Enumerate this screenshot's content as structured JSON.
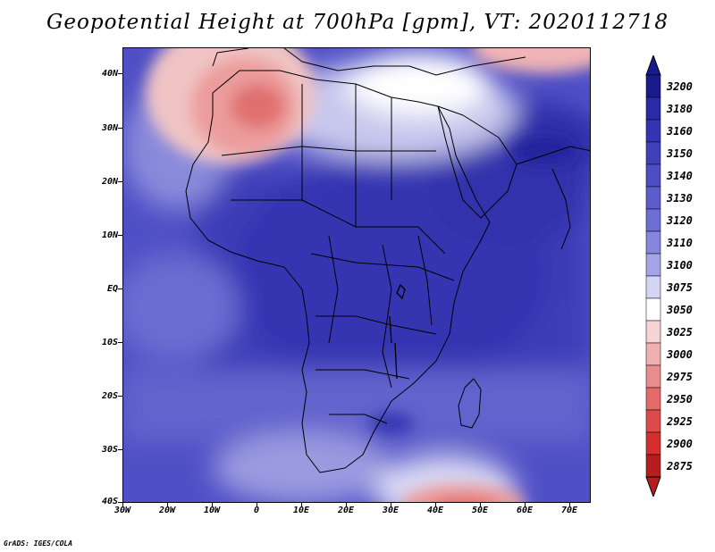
{
  "title": "Geopotential Height at 700hPa [gpm], VT: 2020112718",
  "footer": "GrADS: IGES/COLA",
  "map": {
    "region": "Africa",
    "lat_labels": [
      "40N",
      "30N",
      "20N",
      "10N",
      "EQ",
      "10S",
      "20S",
      "30S",
      "40S"
    ],
    "lat_values": [
      40,
      30,
      20,
      10,
      0,
      -10,
      -20,
      -30,
      -40
    ],
    "lon_labels": [
      "30W",
      "20W",
      "10W",
      "0",
      "10E",
      "20E",
      "30E",
      "40E",
      "50E",
      "60E",
      "70E"
    ],
    "lon_values": [
      -30,
      -20,
      -10,
      0,
      10,
      20,
      30,
      40,
      50,
      60,
      70
    ],
    "lat_range": [
      -40,
      44
    ],
    "lon_range": [
      -30,
      75
    ]
  },
  "colorbar": {
    "levels": [
      "3200",
      "3180",
      "3160",
      "3150",
      "3140",
      "3130",
      "3120",
      "3110",
      "3100",
      "3075",
      "3050",
      "3025",
      "3000",
      "2975",
      "2950",
      "2925",
      "2900",
      "2875"
    ],
    "colors": [
      "#1a1a8c",
      "#2a2aa8",
      "#3434b4",
      "#4040bc",
      "#4d4dc4",
      "#5c5ccc",
      "#6e6ed4",
      "#8686dc",
      "#a4a4e6",
      "#d4d4f4",
      "#ffffff",
      "#f6d4d4",
      "#f0b0b0",
      "#ea8c8c",
      "#e46a6a",
      "#dd4a4a",
      "#d62e2e",
      "#b41e1e"
    ]
  }
}
